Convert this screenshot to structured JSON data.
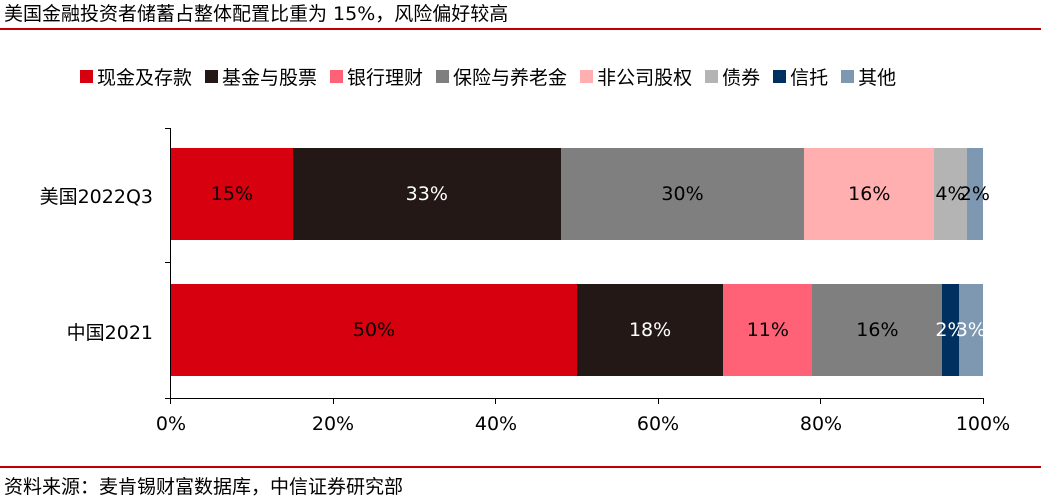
{
  "title": "美国金融投资者储蓄占整体配置比重为 15%，风险偏好较高",
  "source": "资料来源：麦肯锡财富数据库，中信证券研究部",
  "legend": [
    {
      "label": "现金及存款",
      "color": "#d7000f"
    },
    {
      "label": "基金与股票",
      "color": "#231815"
    },
    {
      "label": "银行理财",
      "color": "#ff6176"
    },
    {
      "label": "保险与养老金",
      "color": "#7f7f7f"
    },
    {
      "label": "非公司股权",
      "color": "#ffafaf"
    },
    {
      "label": "债券",
      "color": "#b4b4b4"
    },
    {
      "label": "信托",
      "color": "#00305f"
    },
    {
      "label": "其他",
      "color": "#7f98b2"
    }
  ],
  "xaxis": {
    "ticks": [
      "0%",
      "20%",
      "40%",
      "60%",
      "80%",
      "100%"
    ]
  },
  "chart_data": {
    "type": "bar",
    "orientation": "horizontal",
    "stacked": "percent",
    "title": "美国金融投资者储蓄占整体配置比重为 15%，风险偏好较高",
    "categories": [
      "美国2022Q3",
      "中国2021"
    ],
    "series": [
      {
        "name": "现金及存款",
        "color": "#d7000f",
        "values": [
          15,
          50
        ],
        "labels": [
          "15%",
          "50%"
        ]
      },
      {
        "name": "基金与股票",
        "color": "#231815",
        "values": [
          33,
          18
        ],
        "labels": [
          "33%",
          "18%"
        ]
      },
      {
        "name": "银行理财",
        "color": "#ff6176",
        "values": [
          0,
          11
        ],
        "labels": [
          "",
          "11%"
        ]
      },
      {
        "name": "保险与养老金",
        "color": "#7f7f7f",
        "values": [
          30,
          16
        ],
        "labels": [
          "30%",
          "16%"
        ]
      },
      {
        "name": "非公司股权",
        "color": "#ffafaf",
        "values": [
          16,
          0
        ],
        "labels": [
          "16%",
          ""
        ]
      },
      {
        "name": "债券",
        "color": "#b4b4b4",
        "values": [
          4,
          0
        ],
        "labels": [
          "4%",
          ""
        ]
      },
      {
        "name": "信托",
        "color": "#00305f",
        "values": [
          0,
          2
        ],
        "labels": [
          "",
          "2%"
        ]
      },
      {
        "name": "其他",
        "color": "#7f98b2",
        "values": [
          2,
          3
        ],
        "labels": [
          "2%",
          "3%"
        ]
      }
    ],
    "xlabel": "",
    "ylabel": "",
    "xlim": [
      0,
      100
    ],
    "xticks": [
      "0%",
      "20%",
      "40%",
      "60%",
      "80%",
      "100%"
    ],
    "grid": false,
    "legend_position": "top",
    "source": "资料来源：麦肯锡财富数据库，中信证券研究部"
  },
  "bars": [
    {
      "category": "美国2022Q3",
      "segments": [
        {
          "label": "15%",
          "width": 15,
          "color": "#d7000f",
          "text_color": "#000000"
        },
        {
          "label": "33%",
          "width": 33,
          "color": "#231815",
          "text_color": "#ffffff"
        },
        {
          "label": "30%",
          "width": 30,
          "color": "#7f7f7f",
          "text_color": "#000000"
        },
        {
          "label": "16%",
          "width": 16,
          "color": "#ffafaf",
          "text_color": "#000000"
        },
        {
          "label": "4%",
          "width": 4,
          "color": "#b4b4b4",
          "text_color": "#000000"
        },
        {
          "label": "2%",
          "width": 2,
          "color": "#7f98b2",
          "text_color": "#000000"
        }
      ]
    },
    {
      "category": "中国2021",
      "segments": [
        {
          "label": "50%",
          "width": 50,
          "color": "#d7000f",
          "text_color": "#000000"
        },
        {
          "label": "18%",
          "width": 18,
          "color": "#231815",
          "text_color": "#ffffff"
        },
        {
          "label": "11%",
          "width": 11,
          "color": "#ff6176",
          "text_color": "#000000"
        },
        {
          "label": "16%",
          "width": 16,
          "color": "#7f7f7f",
          "text_color": "#000000"
        },
        {
          "label": "2%",
          "width": 2,
          "color": "#00305f",
          "text_color": "#ffffff"
        },
        {
          "label": "3%",
          "width": 3,
          "color": "#7f98b2",
          "text_color": "#ffffff"
        }
      ]
    }
  ]
}
